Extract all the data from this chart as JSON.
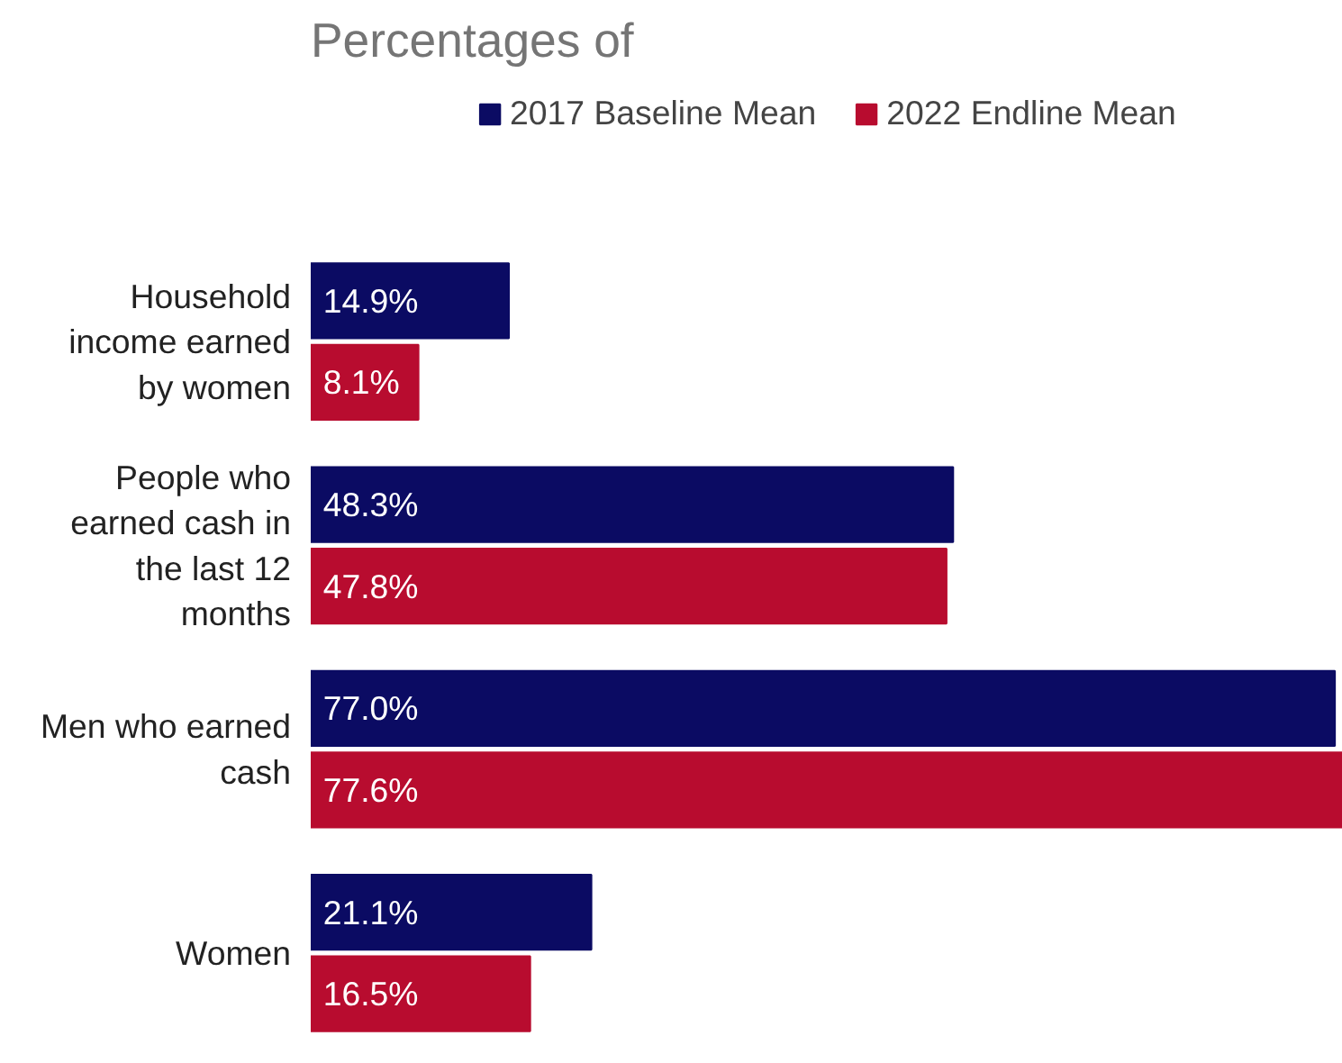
{
  "chart_data": {
    "type": "bar",
    "orientation": "horizontal",
    "title": "Percentages of",
    "categories": [
      "Household income earned by women",
      "People who earned cash in the last 12 months",
      "Men who earned cash",
      "Women"
    ],
    "series": [
      {
        "name": "2017 Baseline Mean",
        "color": "#0b0b63",
        "values": [
          14.9,
          48.3,
          77.0,
          21.1
        ],
        "value_labels": [
          "14.9%",
          "48.3%",
          "77.0%",
          "21.1%"
        ]
      },
      {
        "name": "2022 Endline Mean",
        "color": "#b80c2f",
        "values": [
          8.1,
          47.8,
          77.6,
          16.5
        ],
        "value_labels": [
          "8.1%",
          "47.8%",
          "77.6%",
          "16.5%"
        ]
      }
    ],
    "legend": "top",
    "grid": false,
    "tick_labels": "y"
  }
}
